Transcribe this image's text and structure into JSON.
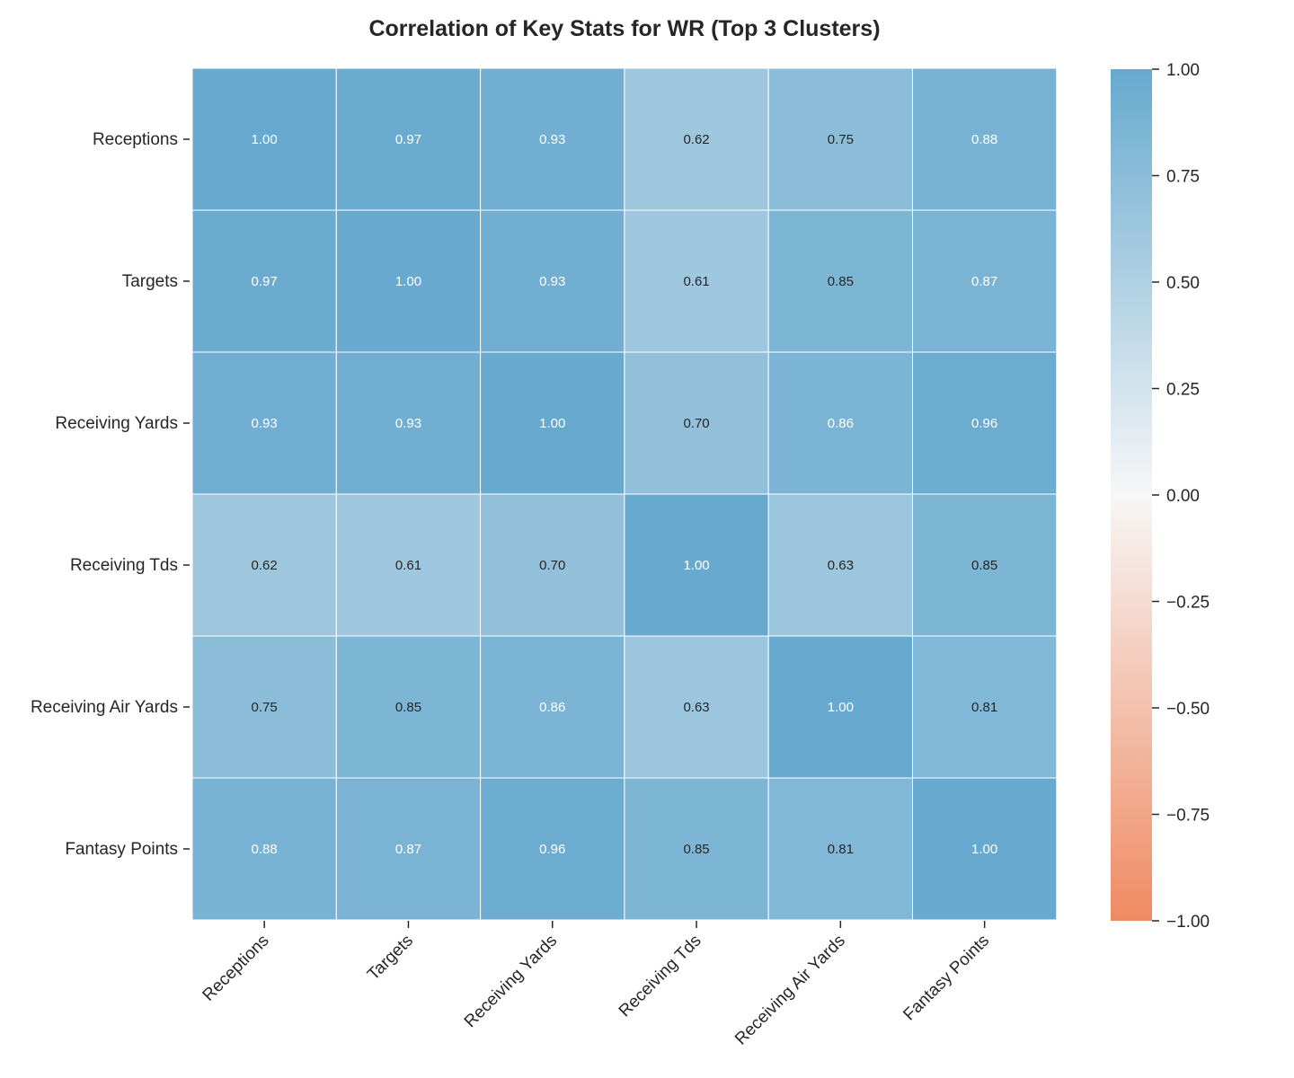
{
  "chart_data": {
    "type": "heatmap",
    "title": "Correlation of Key Stats for WR (Top 3 Clusters)",
    "xlabel": "",
    "ylabel": "",
    "rows": [
      "Receptions",
      "Targets",
      "Receiving Yards",
      "Receiving Tds",
      "Receiving Air Yards",
      "Fantasy Points"
    ],
    "columns": [
      "Receptions",
      "Targets",
      "Receiving Yards",
      "Receiving Tds",
      "Receiving Air Yards",
      "Fantasy Points"
    ],
    "values": [
      [
        1.0,
        0.97,
        0.93,
        0.62,
        0.75,
        0.88
      ],
      [
        0.97,
        1.0,
        0.93,
        0.61,
        0.85,
        0.87
      ],
      [
        0.93,
        0.93,
        1.0,
        0.7,
        0.86,
        0.96
      ],
      [
        0.62,
        0.61,
        0.7,
        1.0,
        0.63,
        0.85
      ],
      [
        0.75,
        0.85,
        0.86,
        0.63,
        1.0,
        0.81
      ],
      [
        0.88,
        0.87,
        0.96,
        0.85,
        0.81,
        1.0
      ]
    ],
    "value_format": "0.00",
    "colorbar": {
      "range": [
        -1.0,
        1.0
      ],
      "ticks": [
        1.0,
        0.75,
        0.5,
        0.25,
        0.0,
        -0.25,
        -0.5,
        -0.75,
        -1.0
      ],
      "tick_labels": [
        "1.00",
        "0.75",
        "0.50",
        "0.25",
        "0.00",
        "−0.25",
        "−0.50",
        "−0.75",
        "−1.00"
      ],
      "colors": {
        "negative": "#ef8a62",
        "center": "#f7f7f7",
        "positive": "#67a9cf"
      }
    },
    "grid": false,
    "legend": "colorbar-right"
  }
}
